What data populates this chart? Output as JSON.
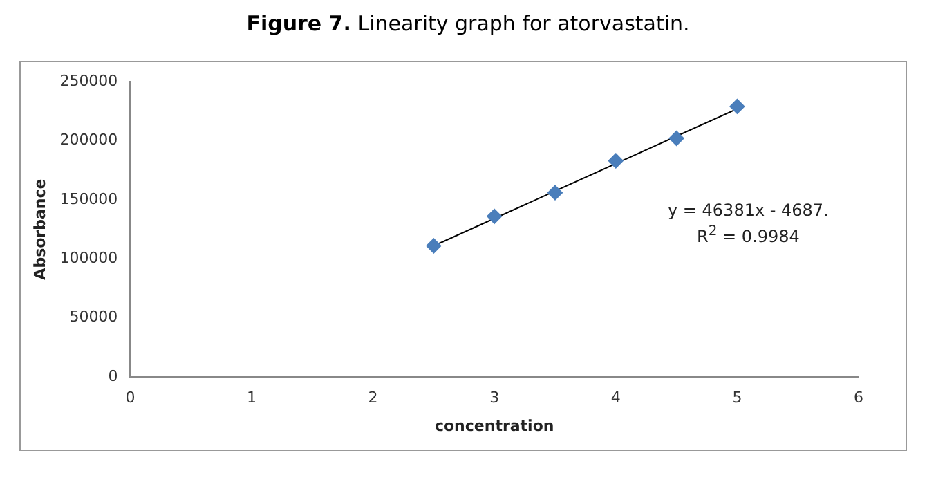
{
  "chart_data": {
    "type": "scatter",
    "title": "Figure 7. Linearity graph for atorvastatin.",
    "xlabel": "concentration",
    "ylabel": "Absorbance",
    "x": [
      2.5,
      3,
      3.5,
      4,
      4.5,
      5
    ],
    "series": [
      {
        "type": "scatter",
        "color": "#4a7ebb",
        "marker": "diamond",
        "values": [
          111000,
          136000,
          156000,
          183000,
          202000,
          229000
        ]
      },
      {
        "type": "line",
        "color": "#000000",
        "marker": "none",
        "x": [
          2.5,
          5
        ],
        "values": [
          111000,
          227000
        ]
      }
    ],
    "xlim": [
      0,
      6
    ],
    "xticks": [
      0,
      1,
      2,
      3,
      4,
      5,
      6
    ],
    "ylim": [
      0,
      250000
    ],
    "yticks": [
      0,
      50000,
      100000,
      150000,
      200000,
      250000
    ],
    "annotations": [
      "y = 46381x - 4687.",
      "R$^{2}$ = 0.9984"
    ],
    "grid": false,
    "legend": false
  }
}
